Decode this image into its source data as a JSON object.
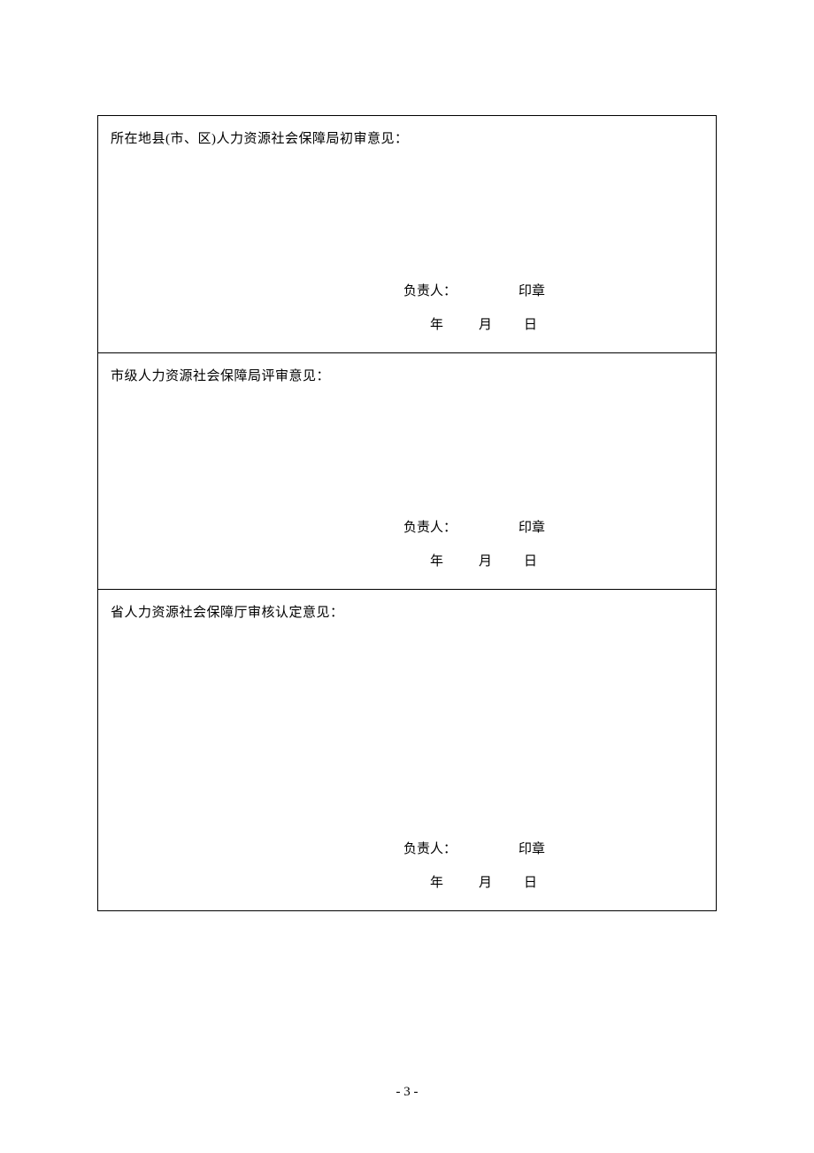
{
  "sections": [
    {
      "title": "所在地县(市、区)人力资源社会保障局初审意见：",
      "responsible": "负责人：",
      "seal": "印章",
      "year": "年",
      "month": "月",
      "day": "日"
    },
    {
      "title": "市级人力资源社会保障局评审意见：",
      "responsible": "负责人：",
      "seal": "印章",
      "year": "年",
      "month": "月",
      "day": "日"
    },
    {
      "title": "省人力资源社会保障厅审核认定意见：",
      "responsible": "负责人：",
      "seal": "印章",
      "year": "年",
      "month": "月",
      "day": "日"
    }
  ],
  "pageNumber": "- 3 -"
}
